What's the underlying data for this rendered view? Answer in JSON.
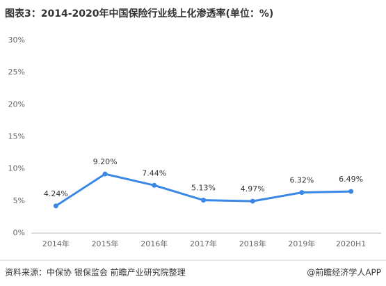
{
  "chart_data": {
    "type": "line",
    "title": "图表3：2014-2020年中国保险行业线上化渗透率(单位：%)",
    "categories": [
      "2014年",
      "2015年",
      "2016年",
      "2017年",
      "2018年",
      "2019年",
      "2020H1"
    ],
    "series": [
      {
        "name": "线上化渗透率",
        "color": "#3a87e6",
        "values": [
          4.24,
          9.2,
          7.44,
          5.13,
          4.97,
          6.32,
          6.49
        ],
        "value_labels": [
          "4.24%",
          "9.20%",
          "7.44%",
          "5.13%",
          "4.97%",
          "6.32%",
          "6.49%"
        ]
      }
    ],
    "ylim": [
      0,
      30
    ],
    "yticks": [
      {
        "value": 0,
        "label": "0%"
      },
      {
        "value": 5,
        "label": "5%"
      },
      {
        "value": 10,
        "label": "10%"
      },
      {
        "value": 15,
        "label": "15%"
      },
      {
        "value": 20,
        "label": "20%"
      },
      {
        "value": 25,
        "label": "25%"
      },
      {
        "value": 30,
        "label": "30%"
      }
    ],
    "grid": false,
    "source": "资料来源：中保协 银保监会 前瞻产业研究院整理",
    "credit": "@前瞻经济学人APP"
  }
}
